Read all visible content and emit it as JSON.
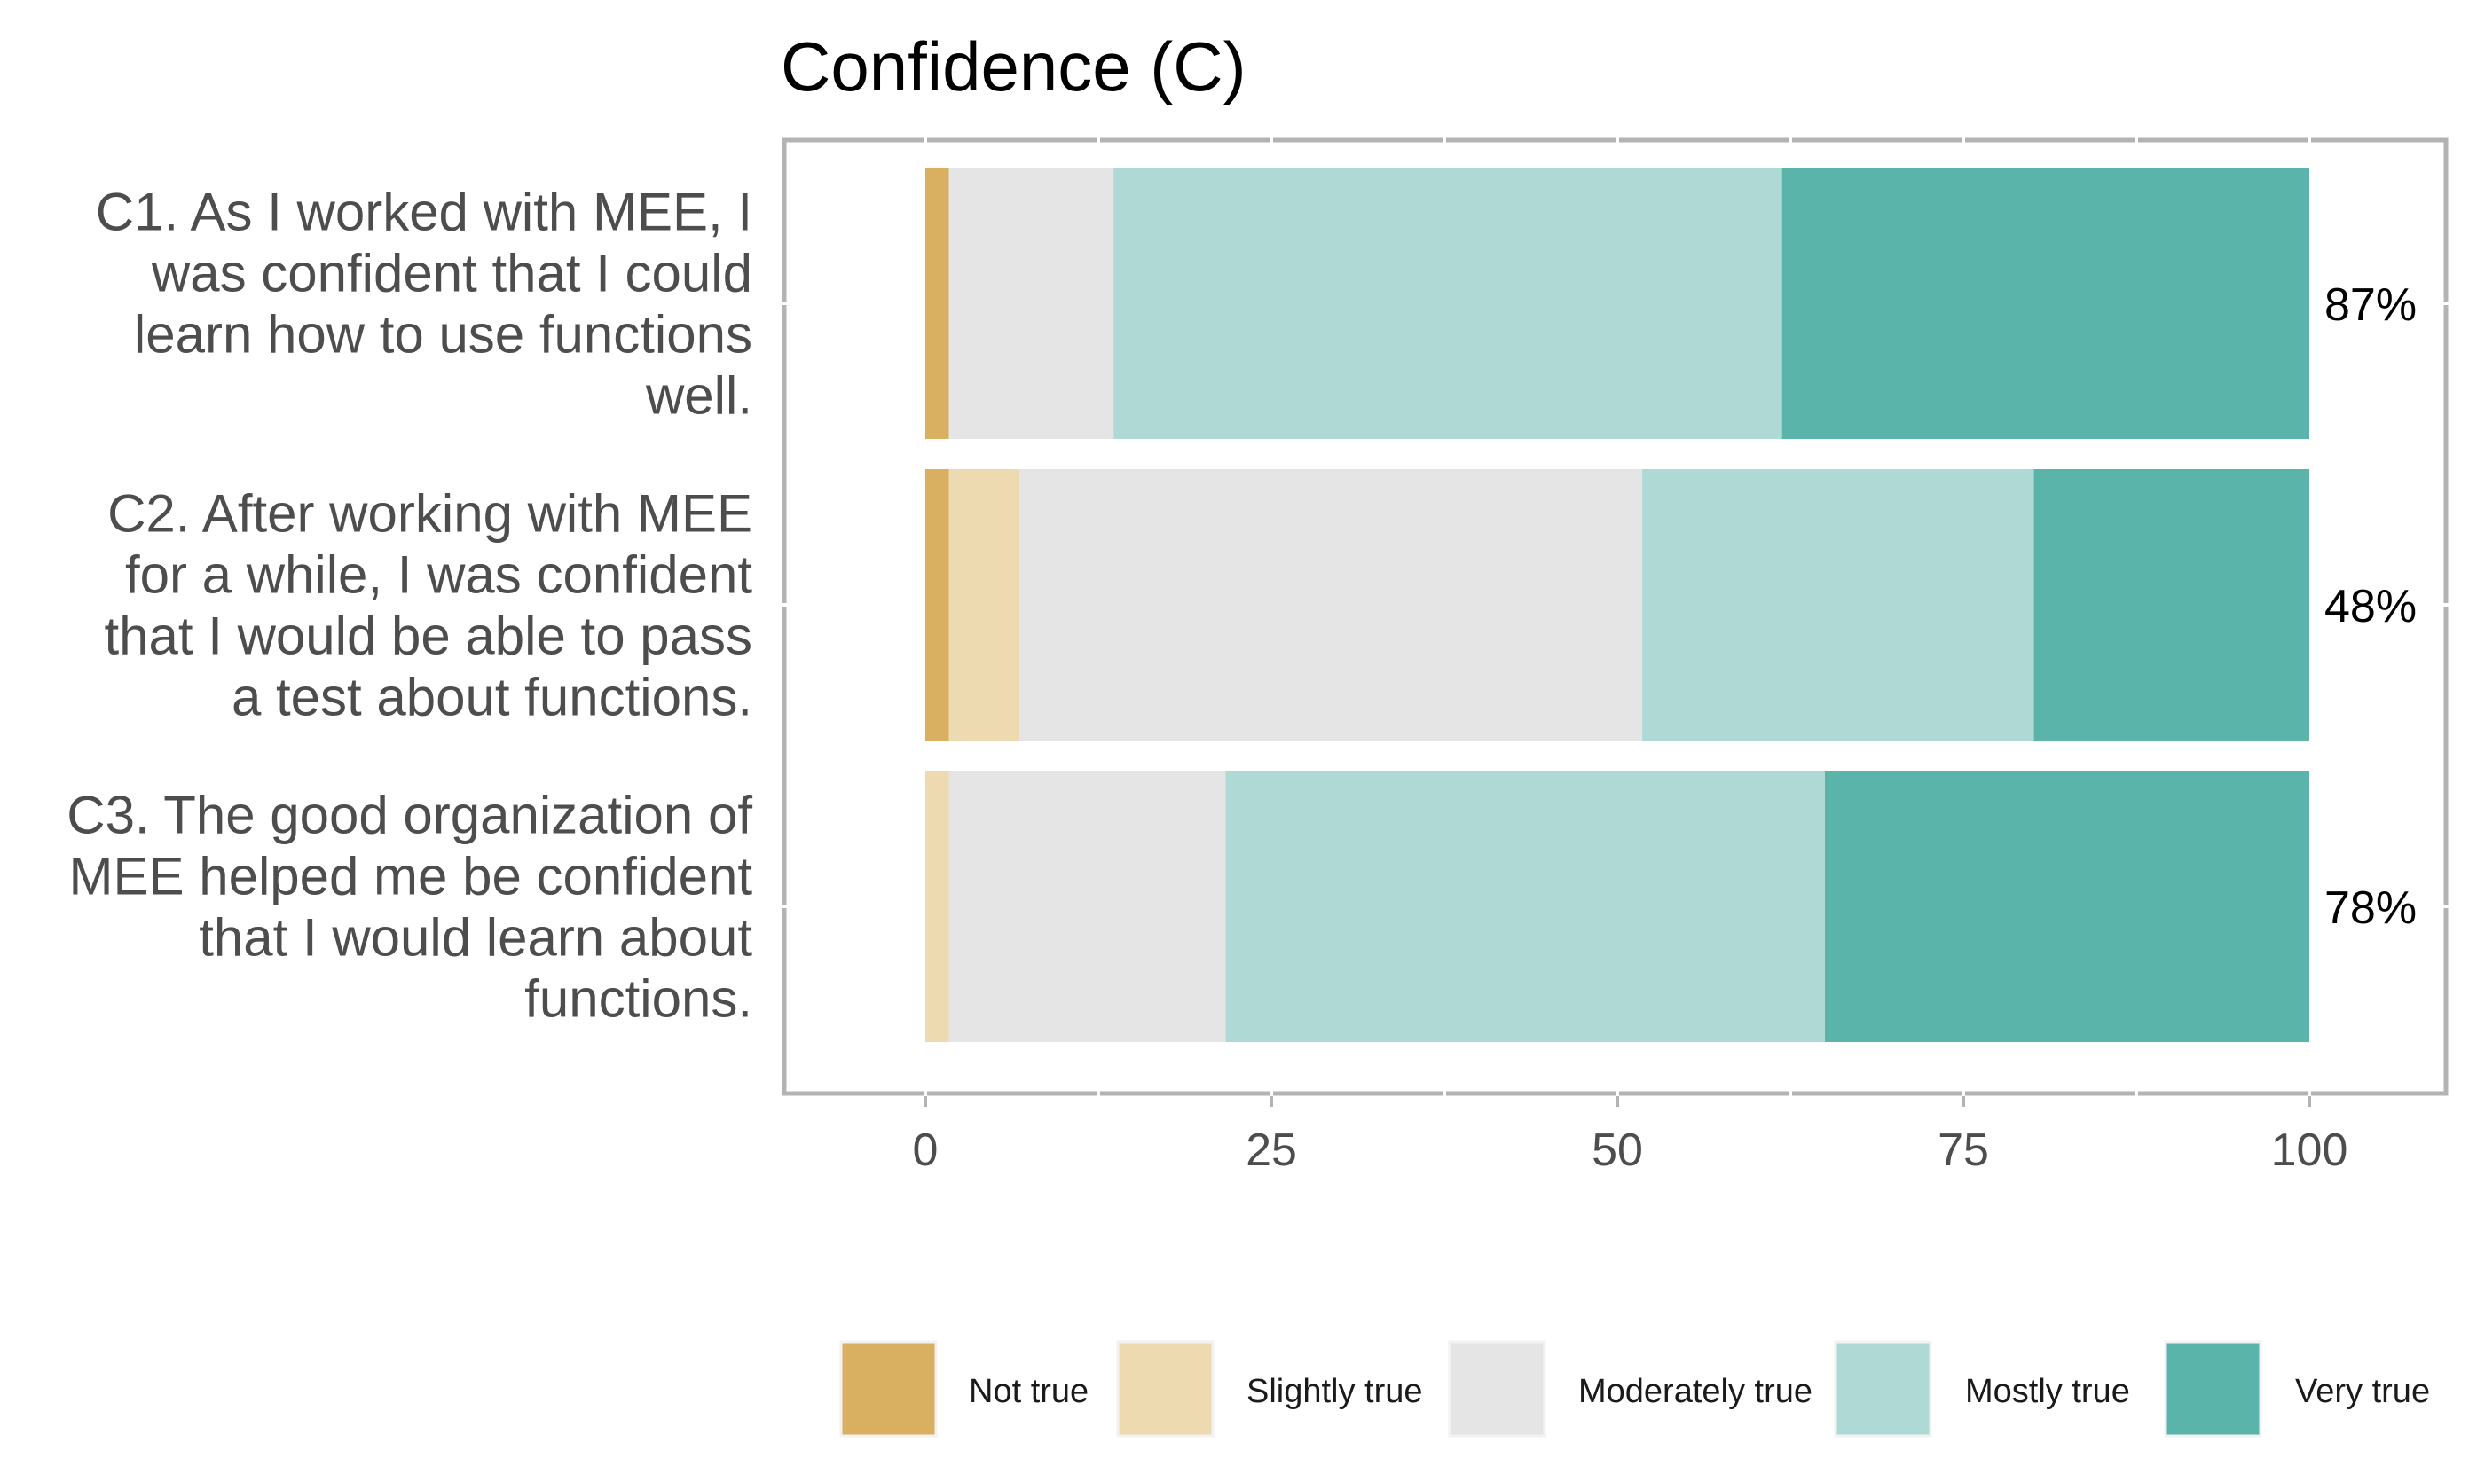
{
  "chart_data": {
    "type": "bar",
    "orientation": "horizontal",
    "stacked": true,
    "title": "Confidence (C)",
    "xlim": [
      -10,
      107
    ],
    "xticks": [
      0,
      25,
      50,
      75,
      100
    ],
    "xtick_labels": [
      "0",
      "25",
      "50",
      "75",
      "100"
    ],
    "categories": [
      "C1. As I worked with MEE, I was confident that I could learn how to use functions well.",
      "C2. After working with MEE for a while, I was confident that I would be able to pass a test about functions.",
      "C3. The good organization of MEE helped me be confident that I would learn about functions."
    ],
    "category_lines": [
      [
        "C1. As I worked with MEE, I",
        "was confident that I could",
        "learn how to use functions",
        "well."
      ],
      [
        "C2. After working with MEE",
        "for a while, I was confident",
        "that I would be able to pass",
        "a test about functions."
      ],
      [
        "C3. The good organization of",
        "MEE helped me be confident",
        "that I would learn about",
        "functions."
      ]
    ],
    "series": [
      {
        "name": "Not true",
        "color": "#d9b062",
        "values": [
          1.7,
          1.7,
          0
        ]
      },
      {
        "name": "Slightly true",
        "color": "#eddab0",
        "values": [
          0,
          5.1,
          1.7
        ]
      },
      {
        "name": "Moderately true",
        "color": "#e5e5e5",
        "values": [
          11.9,
          45.0,
          20.0
        ]
      },
      {
        "name": "Mostly true",
        "color": "#aed9d5",
        "values": [
          48.3,
          28.3,
          43.3
        ]
      },
      {
        "name": "Very true",
        "color": "#5ab4aa",
        "values": [
          38.1,
          19.9,
          35.0
        ]
      }
    ],
    "percent_labels": [
      "87%",
      "48%",
      "78%"
    ],
    "legend_position": "bottom"
  }
}
